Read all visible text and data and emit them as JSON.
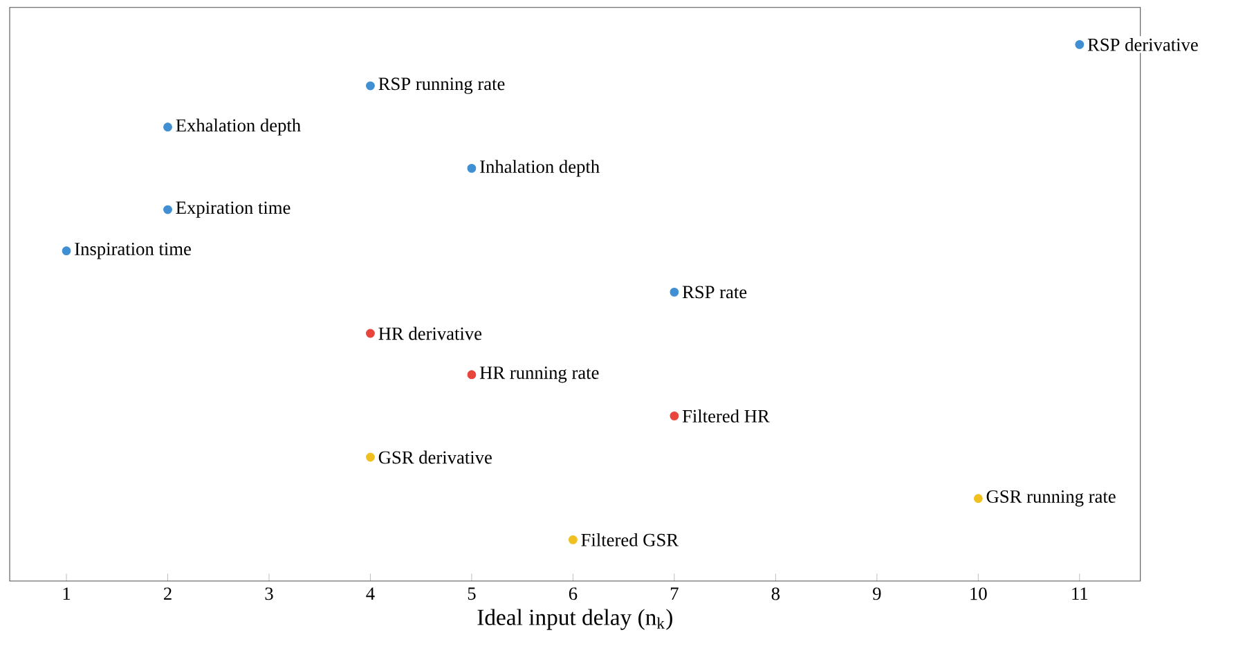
{
  "chart_data": {
    "type": "scatter",
    "orientation": "horizontal",
    "xlabel": "Ideal input delay (n$_{k}$)",
    "categories": [
      "RSP derivative",
      "RSP running rate",
      "Exhalation depth",
      "Inhalation depth",
      "Expiration time",
      "Inspiration time",
      "RSP rate",
      "HR derivative",
      "HR running rate",
      "Filtered HR",
      "GSR derivative",
      "GSR running rate",
      "Filtered GSR"
    ],
    "values": [
      11,
      4,
      2,
      5,
      2,
      1,
      7,
      4,
      5,
      7,
      4,
      10,
      6
    ],
    "colors": [
      "#3f8fd2",
      "#3f8fd2",
      "#3f8fd2",
      "#3f8fd2",
      "#3f8fd2",
      "#3f8fd2",
      "#3f8fd2",
      "#e8453c",
      "#e8453c",
      "#e8453c",
      "#f0c020",
      "#f0c020",
      "#f0c020"
    ],
    "xlim": [
      0.44,
      11.6
    ],
    "xticks": [
      1,
      2,
      3,
      4,
      5,
      6,
      7,
      8,
      9,
      10,
      11
    ]
  }
}
